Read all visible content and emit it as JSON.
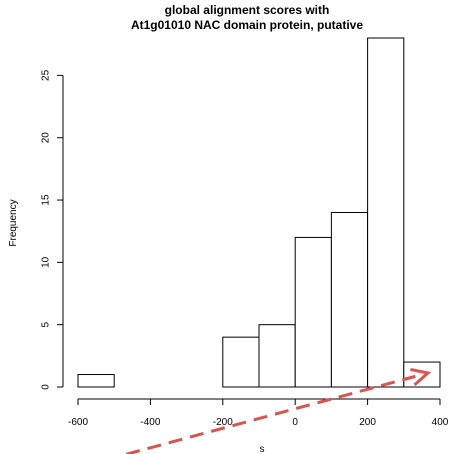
{
  "chart_data": {
    "type": "bar",
    "title_line1": "global alignment scores with",
    "title_line2": "At1g01010 NAC domain protein, putative",
    "xlabel": "s",
    "ylabel": "Frequency",
    "bins": [
      {
        "x0": -600,
        "x1": -500,
        "value": 1
      },
      {
        "x0": -500,
        "x1": -400,
        "value": 0
      },
      {
        "x0": -400,
        "x1": -300,
        "value": 0
      },
      {
        "x0": -300,
        "x1": -200,
        "value": 0
      },
      {
        "x0": -200,
        "x1": -100,
        "value": 4
      },
      {
        "x0": -100,
        "x1": 0,
        "value": 5
      },
      {
        "x0": 0,
        "x1": 100,
        "value": 12
      },
      {
        "x0": 100,
        "x1": 200,
        "value": 14
      },
      {
        "x0": 200,
        "x1": 300,
        "value": 28
      },
      {
        "x0": 300,
        "x1": 400,
        "value": 2
      }
    ],
    "xlim": [
      -600,
      400
    ],
    "ylim": [
      0,
      28
    ],
    "x_ticks": [
      -600,
      -400,
      -200,
      0,
      200,
      400
    ],
    "y_ticks": [
      0,
      5,
      10,
      15,
      20,
      25
    ],
    "grid": false,
    "annotation": {
      "type": "dashed-arrow",
      "color": "#d9534f",
      "points_to_bin": 9
    }
  }
}
